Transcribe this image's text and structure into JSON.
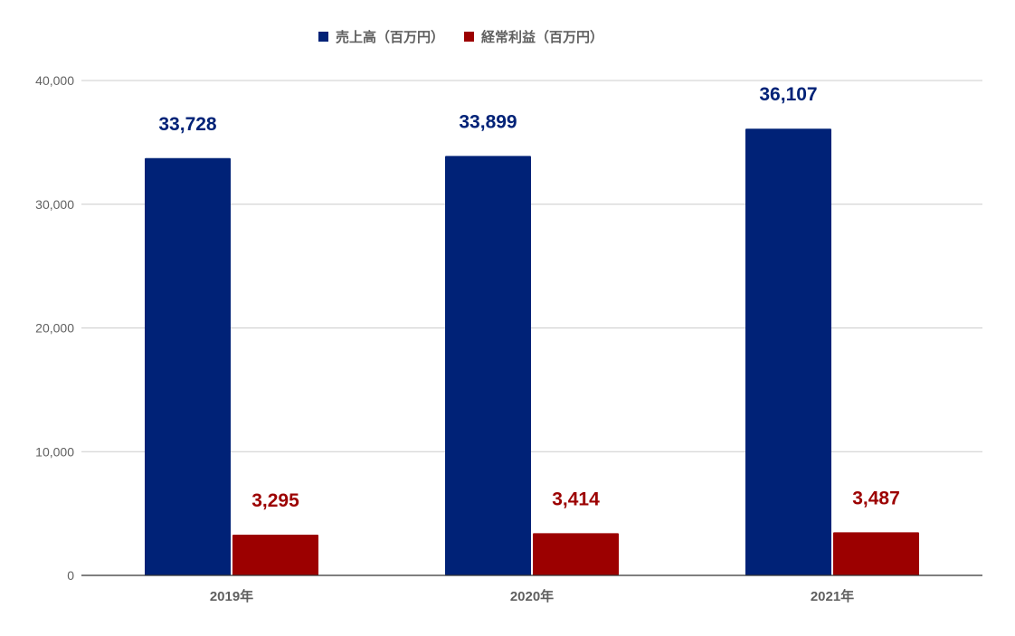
{
  "chart_data": {
    "type": "bar",
    "title": "",
    "xlabel": "",
    "ylabel": "",
    "categories": [
      "2019年",
      "2020年",
      "2021年"
    ],
    "series": [
      {
        "name": "売上高（百万円）",
        "values": [
          33728,
          33899,
          36107
        ],
        "color": "#002277",
        "labels": [
          "33,728",
          "33,899",
          "36,107"
        ]
      },
      {
        "name": "経常利益（百万円）",
        "values": [
          3295,
          3414,
          3487
        ],
        "color": "#9c0000",
        "labels": [
          "3,295",
          "3,414",
          "3,487"
        ]
      }
    ],
    "ylim": [
      0,
      40000
    ],
    "yticks": [
      0,
      10000,
      20000,
      30000,
      40000
    ],
    "ytick_labels": [
      "0",
      "10,000",
      "20,000",
      "30,000",
      "40,000"
    ],
    "grid": true,
    "legend_position": "top",
    "gridline_color": "#cccccc",
    "axis_color": "#333333"
  }
}
